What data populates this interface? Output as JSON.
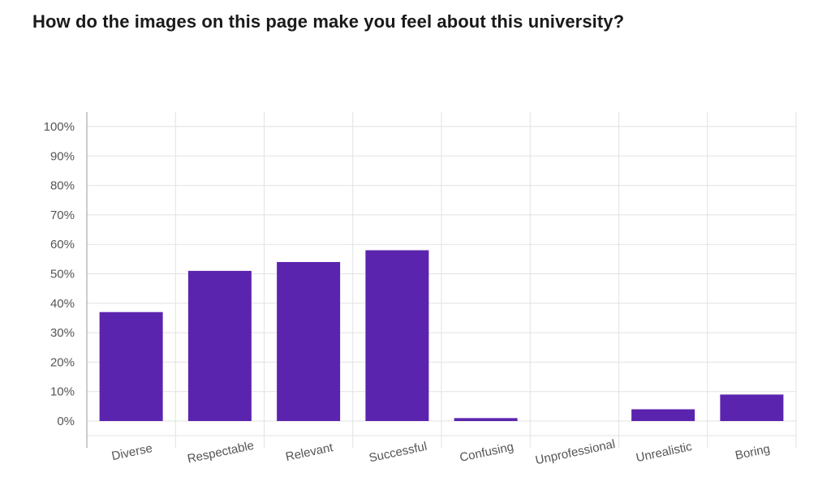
{
  "question": {
    "title": "How do the images on this page make you feel about this university?"
  },
  "chart_data": {
    "type": "bar",
    "title": "How do the images on this page make you feel about this university?",
    "xlabel": "",
    "ylabel": "",
    "categories": [
      "Diverse",
      "Respectable",
      "Relevant",
      "Successful",
      "Confusing",
      "Unprofessional",
      "Unrealistic",
      "Boring"
    ],
    "values": [
      37,
      51,
      54,
      58,
      1,
      0,
      4,
      9
    ],
    "ylim": [
      0,
      100
    ],
    "yticks": [
      "0%",
      "10%",
      "20%",
      "30%",
      "40%",
      "50%",
      "60%",
      "70%",
      "80%",
      "90%",
      "100%"
    ],
    "grid": true,
    "legend": "none",
    "colors": {
      "bar": "#5b24ae",
      "grid": "#e2e2e2",
      "axis": "#999999"
    }
  }
}
